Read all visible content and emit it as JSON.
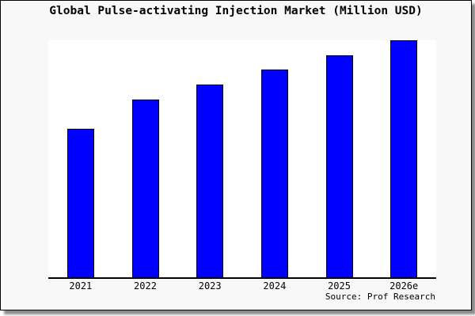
{
  "title": "Global Pulse-activating Injection Market (Million USD)",
  "source_caption": "Source: Prof Research",
  "colors": {
    "bar_fill": "#0000ff",
    "bar_border": "#000000",
    "panel_bg": "#f8f8f8",
    "plot_bg": "#ffffff",
    "axis": "#000000",
    "shadow": "#8a8a8a",
    "text": "#000000"
  },
  "chart_data": {
    "type": "bar",
    "title": "Global Pulse-activating Injection Market (Million USD)",
    "categories": [
      "2021",
      "2022",
      "2023",
      "2024",
      "2025",
      "2026e"
    ],
    "values": [
      62.7,
      74.9,
      81.3,
      87.7,
      93.7,
      99.9
    ],
    "xlabel": "",
    "ylabel": "",
    "ylim": [
      0,
      100
    ],
    "grid": false,
    "legend": false,
    "y_axis_ticks_visible": false,
    "bar_color": "#0000ff",
    "source": "Source: Prof Research"
  }
}
